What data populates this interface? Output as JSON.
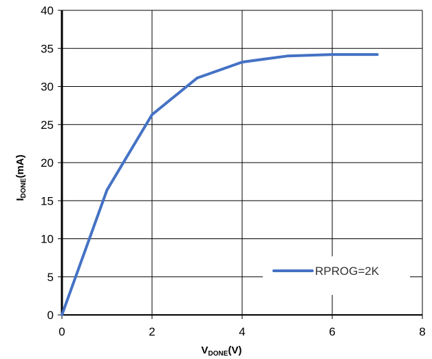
{
  "chart_data": {
    "type": "line",
    "xlim": [
      0,
      8
    ],
    "ylim": [
      0,
      40
    ],
    "xticks": [
      "0",
      "2",
      "4",
      "6",
      "8"
    ],
    "yticks": [
      "0",
      "5",
      "10",
      "15",
      "20",
      "25",
      "30",
      "35",
      "40"
    ],
    "x_tick_values": [
      0,
      2,
      4,
      6,
      8
    ],
    "y_tick_values": [
      0,
      5,
      10,
      15,
      20,
      25,
      30,
      35,
      40
    ],
    "xlabel": {
      "main": "V",
      "sub": "DONE",
      "tail": "(V)"
    },
    "ylabel": {
      "main": "I",
      "sub": "DONE",
      "tail": "(mA)"
    },
    "grid": true,
    "legend_position": "bottom-right",
    "line_color": "#4472C4",
    "series": [
      {
        "name": "RPROG=2K",
        "x": [
          0,
          1,
          2,
          3,
          4,
          5,
          6,
          7
        ],
        "y": [
          0,
          16.4,
          26.3,
          31.1,
          33.2,
          34.0,
          34.2,
          34.2
        ]
      }
    ]
  }
}
